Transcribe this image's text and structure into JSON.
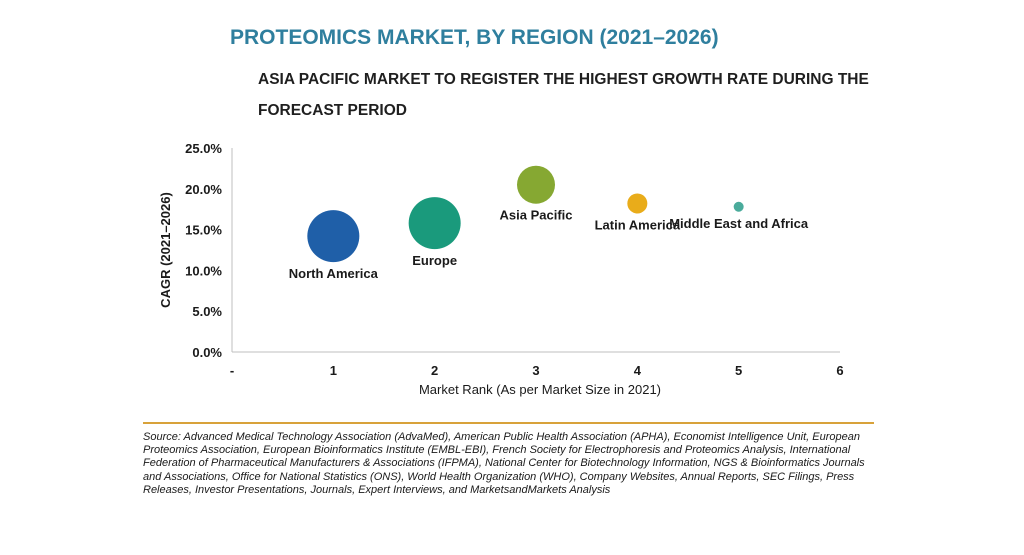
{
  "header": {
    "title": "PROTEOMICS MARKET, BY REGION (2021–2026)",
    "subtitle": "ASIA PACIFIC MARKET TO REGISTER THE HIGHEST GROWTH RATE DURING THE FORECAST PERIOD"
  },
  "chart_data": {
    "type": "scatter",
    "subtype": "bubble",
    "xlabel": "Market Rank (As per Market Size in 2021)",
    "ylabel": "CAGR (2021–2026)",
    "xlim": [
      0,
      6
    ],
    "ylim": [
      0,
      25
    ],
    "x_ticks": [
      "-",
      "1",
      "2",
      "3",
      "4",
      "5",
      "6"
    ],
    "y_ticks": [
      "0.0%",
      "5.0%",
      "10.0%",
      "15.0%",
      "20.0%",
      "25.0%"
    ],
    "grid": false,
    "points": [
      {
        "label": "North America",
        "x": 1,
        "y": 14.2,
        "color": "#1f5fa8",
        "size_rank": 4,
        "label_pos": "below"
      },
      {
        "label": "Europe",
        "x": 2,
        "y": 15.8,
        "color": "#1a9a7c",
        "size_rank": 4,
        "label_pos": "below"
      },
      {
        "label": "Asia Pacific",
        "x": 3,
        "y": 20.5,
        "color": "#86a832",
        "size_rank": 3,
        "label_pos": "below"
      },
      {
        "label": "Latin America",
        "x": 4,
        "y": 18.2,
        "color": "#e9ac1a",
        "size_rank": 2,
        "label_pos": "below"
      },
      {
        "label": "Middle East and Africa",
        "x": 5,
        "y": 17.8,
        "color": "#4aab9b",
        "size_rank": 1,
        "label_pos": "below"
      }
    ]
  },
  "footer": {
    "source": "Source: Advanced Medical Technology Association (AdvaMed), American Public Health Association (APHA), Economist Intelligence Unit, European Proteomics Association, European Bioinformatics Institute (EMBL-EBI), French Society for Electrophoresis and Proteomics Analysis, International Federation of Pharmaceutical Manufacturers & Associations (IFPMA), National Center for Biotechnology Information, NGS & Bioinformatics Journals and Associations, Office for National Statistics (ONS), World Health Organization (WHO), Company Websites, Annual Reports, SEC Filings, Press Releases, Investor Presentations, Journals, Expert Interviews, and MarketsandMarkets Analysis"
  }
}
